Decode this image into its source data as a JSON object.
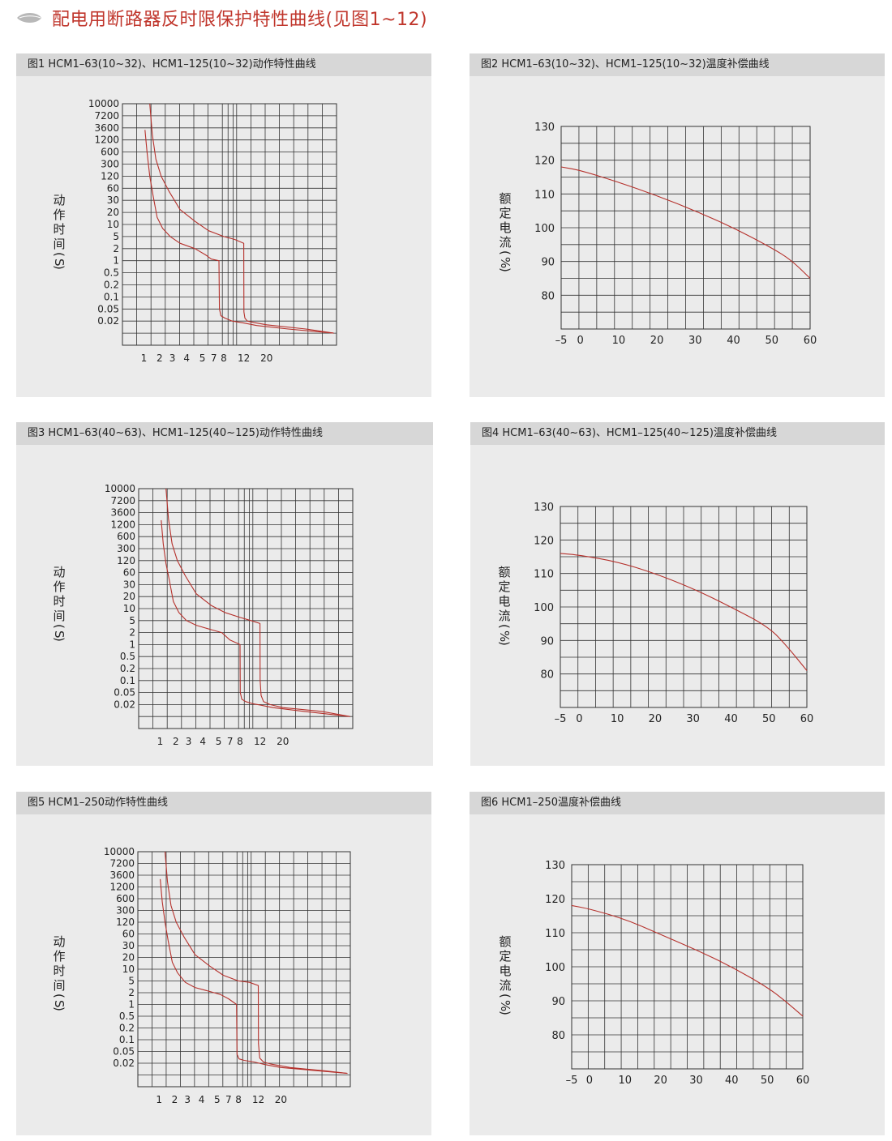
{
  "header": {
    "title": "配电用断路器反时限保护特性曲线(见图1~12)",
    "icon": "leaf-bullet-icon",
    "accent_color": "#c0362c"
  },
  "curve_color": "#b5312c",
  "panel_colors": {
    "background": "#ebebeb",
    "title_bar": "#d7d7d7"
  },
  "panels": [
    {
      "title": "图1 HCM1–63(10~32)、HCM1–125(10~32)动作特性曲线",
      "kind": "trip"
    },
    {
      "title": "图2 HCM1–63(10~32)、HCM1–125(10~32)温度补偿曲线",
      "kind": "temp"
    },
    {
      "title": "图3 HCM1–63(40~63)、HCM1–125(40~125)动作特性曲线",
      "kind": "trip"
    },
    {
      "title": "图4 HCM1–63(40~63)、HCM1–125(40~125)温度补偿曲线",
      "kind": "temp"
    },
    {
      "title": "图5 HCM1–250动作特性曲线",
      "kind": "trip"
    },
    {
      "title": "图6 HCM1–250温度补偿曲线",
      "kind": "temp"
    }
  ],
  "chart_data": [
    {
      "type": "line",
      "title": "图1 HCM1–63(10~32)、HCM1–125(10~32)动作特性曲线",
      "ylabel": "动作时间(S)",
      "xlabel": "",
      "x_ticks": [
        "1",
        "2",
        "3",
        "4",
        "5",
        "7",
        "8",
        "12",
        "20"
      ],
      "y_ticks": [
        "10000",
        "7200",
        "3600",
        "1200",
        "600",
        "300",
        "120",
        "60",
        "30",
        "20",
        "10",
        "5",
        "2",
        "1",
        "0.5",
        "0.2",
        "0.1",
        "0.05",
        "0.02"
      ],
      "grid": true,
      "series": [
        {
          "x": [
            1.05,
            1.15,
            1.3,
            1.5,
            1.8,
            2.2,
            2.8,
            3.5,
            4.5,
            5.5,
            6.5,
            7.5,
            7.5,
            7.55,
            7.7,
            8.2,
            9.5,
            12,
            16,
            25,
            40
          ],
          "y": [
            3000,
            600,
            120,
            40,
            15,
            8,
            5,
            3,
            2,
            1.4,
            1.1,
            1,
            1,
            0.05,
            0.03,
            0.025,
            0.02,
            0.016,
            0.012,
            0.008,
            0.005
          ]
        },
        {
          "x": [
            1.3,
            1.45,
            1.7,
            2.1,
            2.7,
            3.5,
            4.5,
            6,
            8,
            10,
            12,
            12,
            12.05,
            12.3,
            13,
            15,
            20,
            30,
            40
          ],
          "y": [
            10000,
            2000,
            400,
            120,
            50,
            22,
            12,
            7,
            5,
            4,
            3,
            3,
            0.04,
            0.025,
            0.02,
            0.017,
            0.013,
            0.008,
            0.005
          ]
        }
      ]
    },
    {
      "type": "line",
      "title": "图2 HCM1–63(10~32)、HCM1–125(10~32)温度补偿曲线",
      "ylabel": "额定电流(%)",
      "xlabel": "",
      "x_ticks": [
        "–5",
        "0",
        "10",
        "20",
        "30",
        "40",
        "50",
        "60"
      ],
      "y_ticks": [
        "80",
        "90",
        "100",
        "110",
        "120",
        "130"
      ],
      "grid": true,
      "series": [
        {
          "x": [
            -5,
            0,
            10,
            20,
            30,
            40,
            50,
            55,
            60
          ],
          "y": [
            118,
            117,
            113.5,
            109.5,
            105,
            100,
            94,
            90.5,
            85
          ]
        }
      ]
    },
    {
      "type": "line",
      "title": "图3 HCM1–63(40~63)、HCM1–125(40~125)动作特性曲线",
      "ylabel": "动作时间(S)",
      "xlabel": "",
      "x_ticks": [
        "1",
        "2",
        "3",
        "4",
        "5",
        "7",
        "8",
        "12",
        "20"
      ],
      "y_ticks": [
        "10000",
        "7200",
        "3600",
        "1200",
        "600",
        "300",
        "120",
        "60",
        "30",
        "20",
        "10",
        "5",
        "2",
        "1",
        "0.5",
        "0.2",
        "0.1",
        "0.05",
        "0.02"
      ],
      "grid": true,
      "series": [
        {
          "x": [
            1.05,
            1.15,
            1.3,
            1.5,
            1.8,
            2.2,
            2.8,
            3.5,
            4.5,
            5.5,
            7,
            8,
            8,
            8.05,
            8.3,
            9,
            10.5,
            12,
            16,
            25,
            40
          ],
          "y": [
            1800,
            400,
            100,
            40,
            15,
            8,
            5,
            3.5,
            2.5,
            2,
            1.3,
            1,
            1,
            0.05,
            0.03,
            0.025,
            0.021,
            0.019,
            0.014,
            0.009,
            0.005
          ]
        },
        {
          "x": [
            1.3,
            1.45,
            1.7,
            2.1,
            2.7,
            3.5,
            4.5,
            6,
            8,
            10,
            12,
            12,
            12.05,
            12.3,
            13,
            15,
            20,
            30,
            40
          ],
          "y": [
            10000,
            2000,
            400,
            120,
            50,
            22,
            12,
            8,
            6,
            5,
            4,
            4,
            0.1,
            0.04,
            0.025,
            0.02,
            0.014,
            0.009,
            0.005
          ]
        }
      ]
    },
    {
      "type": "line",
      "title": "图4 HCM1–63(40~63)、HCM1–125(40~125)温度补偿曲线",
      "ylabel": "额定电流(%)",
      "xlabel": "",
      "x_ticks": [
        "–5",
        "0",
        "10",
        "20",
        "30",
        "40",
        "50",
        "60"
      ],
      "y_ticks": [
        "80",
        "90",
        "100",
        "110",
        "120",
        "130"
      ],
      "grid": true,
      "series": [
        {
          "x": [
            -5,
            0,
            10,
            20,
            30,
            40,
            50,
            55,
            60
          ],
          "y": [
            116,
            115.5,
            113.5,
            110,
            105.5,
            100,
            94,
            88,
            81
          ]
        }
      ]
    },
    {
      "type": "line",
      "title": "图5 HCM1–250动作特性曲线",
      "ylabel": "动作时间(S)",
      "xlabel": "",
      "x_ticks": [
        "1",
        "2",
        "3",
        "4",
        "5",
        "7",
        "8",
        "12",
        "20"
      ],
      "y_ticks": [
        "10000",
        "7200",
        "3600",
        "1200",
        "600",
        "300",
        "120",
        "60",
        "30",
        "20",
        "10",
        "5",
        "2",
        "1",
        "0.5",
        "0.2",
        "0.1",
        "0.05",
        "0.02"
      ],
      "grid": true,
      "series": [
        {
          "x": [
            1.05,
            1.15,
            1.3,
            1.5,
            1.8,
            2.2,
            2.8,
            3.5,
            4.5,
            5.5,
            7,
            7.8,
            7.8,
            7.85,
            8.1,
            9,
            11,
            14,
            20,
            30,
            40
          ],
          "y": [
            2500,
            500,
            120,
            40,
            15,
            8,
            4.5,
            3,
            2.2,
            1.8,
            1.4,
            1,
            1,
            0.04,
            0.028,
            0.025,
            0.022,
            0.017,
            0.012,
            0.008,
            0.006
          ]
        },
        {
          "x": [
            1.3,
            1.45,
            1.7,
            2.1,
            2.7,
            3.5,
            4.5,
            6,
            8,
            10,
            12,
            12,
            12.05,
            12.4,
            13.5,
            16,
            22,
            32,
            40
          ],
          "y": [
            10000,
            2000,
            400,
            120,
            50,
            22,
            12,
            7,
            5,
            4.5,
            3.5,
            3.5,
            0.08,
            0.03,
            0.022,
            0.018,
            0.012,
            0.008,
            0.006
          ]
        }
      ]
    },
    {
      "type": "line",
      "title": "图6 HCM1–250温度补偿曲线",
      "ylabel": "额定电流(%)",
      "xlabel": "",
      "x_ticks": [
        "–5",
        "0",
        "10",
        "20",
        "30",
        "40",
        "50",
        "60"
      ],
      "y_ticks": [
        "80",
        "90",
        "100",
        "110",
        "120",
        "130"
      ],
      "grid": true,
      "series": [
        {
          "x": [
            -5,
            0,
            10,
            20,
            30,
            40,
            50,
            55,
            60
          ],
          "y": [
            118,
            117,
            114,
            109.5,
            105,
            100,
            94,
            90,
            85.5
          ]
        }
      ]
    }
  ]
}
